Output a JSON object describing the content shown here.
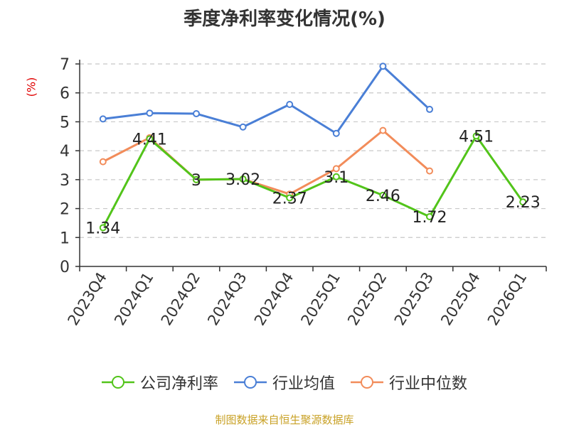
{
  "title": "季度净利率变化情况(%)",
  "y_unit": "(%)",
  "source": "制图数据来自恒生聚源数据库",
  "chart_data": {
    "type": "line",
    "title": "季度净利率变化情况(%)",
    "ylabel": "(%)",
    "ylim": [
      0,
      7
    ],
    "yticks": [
      0,
      1,
      2,
      3,
      4,
      5,
      6,
      7
    ],
    "grid": true,
    "legend_position": "bottom",
    "categories": [
      "2023Q4",
      "2024Q1",
      "2024Q2",
      "2024Q3",
      "2024Q4",
      "2025Q1",
      "2025Q2",
      "2025Q3",
      "2025Q4",
      "2026Q1"
    ],
    "series": [
      {
        "name": "公司净利率",
        "color": "#52c41a",
        "values": [
          1.34,
          4.41,
          3,
          3.02,
          2.37,
          3.1,
          2.46,
          1.72,
          4.51,
          2.23
        ],
        "labels": [
          "1.34",
          "4.41",
          "3",
          "3.02",
          "2.37",
          "3.1",
          "2.46",
          "1.72",
          "4.51",
          "2.23"
        ]
      },
      {
        "name": "行业均值",
        "color": "#4a7fd6",
        "values": [
          5.1,
          5.3,
          5.28,
          4.82,
          5.6,
          4.6,
          6.92,
          5.43,
          null,
          null
        ]
      },
      {
        "name": "行业中位数",
        "color": "#f28c5a",
        "values": [
          3.62,
          4.45,
          3.0,
          3.02,
          2.5,
          3.38,
          4.7,
          3.3,
          null,
          null
        ]
      }
    ]
  }
}
